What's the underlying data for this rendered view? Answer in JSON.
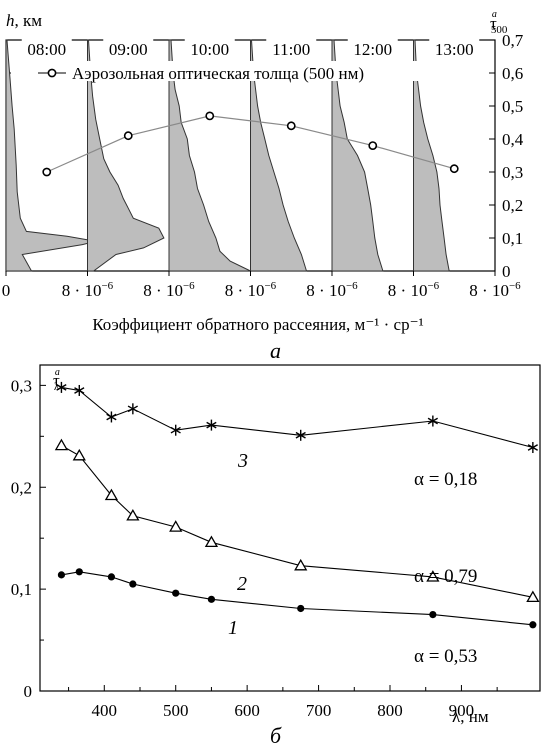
{
  "chart_data": [
    {
      "type": "area",
      "panel_label": "а",
      "xlabel": "Коэффициент обратного рассеяния, м⁻¹ · ср⁻¹",
      "ylabel_left": "h, км",
      "ylabel_right": "τ",
      "ylabel_right_sup": "a",
      "ylabel_right_sub": "500",
      "legend": "Аэрозольная оптическая толща (500 нм)",
      "x_tick_first": "0",
      "x_tick_label": "8 · 10⁻⁶",
      "x_tick_mantissa": "8 · 10",
      "x_tick_exp": "−6",
      "xlim": [
        0,
        8e-06
      ],
      "ylim_left": [
        0,
        7
      ],
      "right_ticks": [
        "0",
        "0,1",
        "0,2",
        "0,3",
        "0,4",
        "0,5",
        "0,6",
        "0,7"
      ],
      "ylim_right": [
        0,
        0.7
      ],
      "panels": [
        {
          "time": "08:00",
          "profile": [
            [
              0,
              2.5e-06
            ],
            [
              0.5,
              1.6e-06
            ],
            [
              0.8,
              7.5e-06
            ],
            [
              0.9,
              8.8e-06
            ],
            [
              1.05,
              6e-06
            ],
            [
              1.2,
              2e-06
            ],
            [
              1.6,
              1.4e-06
            ],
            [
              2.4,
              1.1e-06
            ],
            [
              3.2,
              1e-06
            ],
            [
              4.3,
              8e-07
            ],
            [
              5.0,
              6e-07
            ],
            [
              5.8,
              4e-07
            ],
            [
              6.6,
              2e-07
            ],
            [
              7.0,
              1e-07
            ]
          ]
        },
        {
          "time": "09:00",
          "profile": [
            [
              0,
              6e-07
            ],
            [
              0.5,
              2.8e-06
            ],
            [
              0.7,
              5.5e-06
            ],
            [
              1.0,
              7.5e-06
            ],
            [
              1.3,
              7e-06
            ],
            [
              1.6,
              4.5e-06
            ],
            [
              1.9,
              4e-06
            ],
            [
              2.2,
              3.5e-06
            ],
            [
              2.6,
              3e-06
            ],
            [
              3.0,
              2.2e-06
            ],
            [
              3.4,
              1.6e-06
            ],
            [
              4.0,
              1.2e-06
            ],
            [
              4.6,
              8e-07
            ],
            [
              5.3,
              5e-07
            ],
            [
              6.0,
              3e-07
            ],
            [
              7.0,
              1e-07
            ]
          ]
        },
        {
          "time": "10:00",
          "profile": [
            [
              0,
              8e-06
            ],
            [
              0.3,
              6e-06
            ],
            [
              0.6,
              5e-06
            ],
            [
              1.0,
              4.6e-06
            ],
            [
              1.5,
              3.9e-06
            ],
            [
              2.0,
              3.4e-06
            ],
            [
              2.5,
              2.8e-06
            ],
            [
              3.0,
              2.5e-06
            ],
            [
              3.5,
              2e-06
            ],
            [
              4.0,
              1.8e-06
            ],
            [
              4.5,
              1.2e-06
            ],
            [
              5.0,
              1e-06
            ],
            [
              5.5,
              6e-07
            ],
            [
              6.0,
              4e-07
            ],
            [
              7.0,
              2e-07
            ]
          ]
        },
        {
          "time": "11:00",
          "profile": [
            [
              0,
              5.5e-06
            ],
            [
              0.5,
              5e-06
            ],
            [
              1.0,
              4.3e-06
            ],
            [
              1.5,
              3.7e-06
            ],
            [
              2.0,
              3.2e-06
            ],
            [
              2.5,
              2.8e-06
            ],
            [
              3.0,
              2.3e-06
            ],
            [
              3.5,
              1.8e-06
            ],
            [
              4.0,
              1.4e-06
            ],
            [
              4.5,
              1e-06
            ],
            [
              5.0,
              7e-07
            ],
            [
              5.5,
              5e-07
            ],
            [
              6.0,
              3e-07
            ],
            [
              7.0,
              1e-07
            ]
          ]
        },
        {
          "time": "12:00",
          "profile": [
            [
              0,
              5e-06
            ],
            [
              0.5,
              4.5e-06
            ],
            [
              1.0,
              4.2e-06
            ],
            [
              1.5,
              4e-06
            ],
            [
              2.0,
              3.8e-06
            ],
            [
              2.5,
              3.5e-06
            ],
            [
              3.0,
              3.2e-06
            ],
            [
              3.5,
              2.5e-06
            ],
            [
              4.0,
              1.5e-06
            ],
            [
              4.5,
              1.2e-06
            ],
            [
              5.0,
              8e-07
            ],
            [
              6.0,
              4e-07
            ],
            [
              7.0,
              2e-07
            ]
          ]
        },
        {
          "time": "13:00",
          "profile": [
            [
              0,
              3.5e-06
            ],
            [
              0.5,
              3.2e-06
            ],
            [
              1.0,
              3e-06
            ],
            [
              1.5,
              2.8e-06
            ],
            [
              2.0,
              2.6e-06
            ],
            [
              2.5,
              2.5e-06
            ],
            [
              3.0,
              2.3e-06
            ],
            [
              3.5,
              1.9e-06
            ],
            [
              4.0,
              1.4e-06
            ],
            [
              4.5,
              1e-06
            ],
            [
              5.0,
              7e-07
            ],
            [
              5.5,
              5e-07
            ],
            [
              6.0,
              3e-07
            ],
            [
              7.0,
              1.5e-07
            ]
          ]
        }
      ],
      "aod_series": [
        0.3,
        0.41,
        0.47,
        0.44,
        0.38,
        0.31
      ],
      "colors": {
        "fill": "#bdbdbd",
        "line": "#000000",
        "aod_line": "#8a8a8a"
      }
    },
    {
      "type": "line",
      "panel_label": "б",
      "xlabel": "λ, нм",
      "ylabel": "τ",
      "ylabel_sup": "a",
      "ylabel_sub": "λ",
      "xlim": [
        310,
        1010
      ],
      "ylim": [
        0,
        0.32
      ],
      "x_ticks": [
        "400",
        "500",
        "600",
        "700",
        "800",
        "900"
      ],
      "x_tick_values": [
        400,
        500,
        600,
        700,
        800,
        900
      ],
      "y_ticks": [
        "0",
        "0,1",
        "0,2",
        "0,3"
      ],
      "y_tick_values": [
        0,
        0.1,
        0.2,
        0.3
      ],
      "series": [
        {
          "curve_label": "3",
          "alpha_label": "α = 0,18",
          "marker": "star",
          "x": [
            340,
            365,
            410,
            440,
            500,
            550,
            675,
            860,
            1000
          ],
          "y": [
            0.298,
            0.295,
            0.269,
            0.277,
            0.256,
            0.261,
            0.251,
            0.265,
            0.239
          ]
        },
        {
          "curve_label": "2",
          "alpha_label": "α = 0,79",
          "marker": "triangle",
          "x": [
            340,
            365,
            410,
            440,
            500,
            550,
            675,
            860,
            1000
          ],
          "y": [
            0.241,
            0.231,
            0.192,
            0.172,
            0.161,
            0.146,
            0.123,
            0.112,
            0.092
          ]
        },
        {
          "curve_label": "1",
          "alpha_label": "α = 0,53",
          "marker": "circle",
          "x": [
            340,
            365,
            410,
            440,
            500,
            550,
            675,
            860,
            1000
          ],
          "y": [
            0.114,
            0.117,
            0.112,
            0.105,
            0.096,
            0.09,
            0.081,
            0.075,
            0.065
          ]
        }
      ]
    }
  ]
}
